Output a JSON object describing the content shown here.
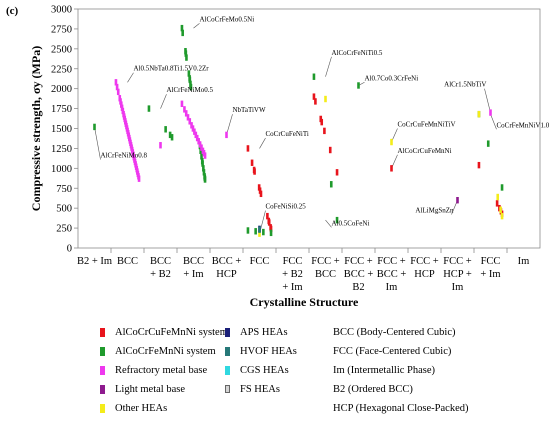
{
  "figure_label": "(c)",
  "chart_data": {
    "type": "scatter",
    "ylabel": "Compressive strength, σy (MPa)",
    "xlabel": "Crystalline Structure",
    "ylim": [
      0,
      3000
    ],
    "yticks": [
      0,
      250,
      500,
      750,
      1000,
      1250,
      1500,
      1750,
      2000,
      2250,
      2500,
      2750,
      3000
    ],
    "categories": [
      {
        "id": "b2im",
        "lines": [
          "B2 + Im"
        ]
      },
      {
        "id": "bcc",
        "lines": [
          "BCC"
        ]
      },
      {
        "id": "bccb2",
        "lines": [
          "BCC",
          "+ B2"
        ]
      },
      {
        "id": "bccim",
        "lines": [
          "BCC",
          "+ Im"
        ]
      },
      {
        "id": "bcchcp",
        "lines": [
          "BCC +",
          "HCP"
        ]
      },
      {
        "id": "fcc",
        "lines": [
          "FCC"
        ]
      },
      {
        "id": "fccb2im",
        "lines": [
          "FCC",
          "+ B2",
          "+ Im"
        ]
      },
      {
        "id": "fccbcc",
        "lines": [
          "FCC +",
          "BCC"
        ]
      },
      {
        "id": "fccbccb2",
        "lines": [
          "FCC +",
          "BCC +",
          "B2"
        ]
      },
      {
        "id": "fccbccim",
        "lines": [
          "FCC +",
          "BCC +",
          "Im"
        ]
      },
      {
        "id": "fcchcp",
        "lines": [
          "FCC +",
          "HCP"
        ]
      },
      {
        "id": "fcchcpim",
        "lines": [
          "FCC +",
          "HCP +",
          "Im"
        ]
      },
      {
        "id": "fccim",
        "lines": [
          "FCC",
          "+ Im"
        ]
      },
      {
        "id": "im",
        "lines": [
          "Im"
        ]
      }
    ],
    "colors": {
      "AlCoCrCuFeMnNi": "#e8141c",
      "AlCoCrFeMnNi": "#1f9a2c",
      "Refractory": "#ee38ee",
      "Light": "#8e1a8e",
      "Other": "#f4ec1a",
      "APS": "#1a1f78",
      "HVOF": "#267878",
      "CGS": "#30d8e0",
      "FS": "#d4d4d4"
    },
    "series": [
      {
        "key": "AlCoCrCuFeMnNi",
        "points": [
          [
            "fcc",
            1250
          ],
          [
            "fcc",
            1070
          ],
          [
            "fcc",
            980
          ],
          [
            "fcc",
            960
          ],
          [
            "fcc",
            760
          ],
          [
            "fcc",
            720
          ],
          [
            "fcc",
            680
          ],
          [
            "fcc",
            400
          ],
          [
            "fcc",
            340
          ],
          [
            "fcc",
            320
          ],
          [
            "fcc",
            260
          ],
          [
            "fcc",
            240
          ],
          [
            "fccbcc",
            1900
          ],
          [
            "fccbcc",
            1840
          ],
          [
            "fccbcc",
            1620
          ],
          [
            "fccbcc",
            1580
          ],
          [
            "fccbcc",
            1470
          ],
          [
            "fccbcc",
            1230
          ],
          [
            "fccbcc",
            950
          ],
          [
            "fccbccim",
            1000
          ],
          [
            "fccim",
            1040
          ],
          [
            "fccim",
            560
          ],
          [
            "fccim",
            500
          ],
          [
            "fccim",
            460
          ],
          [
            "fccim",
            430
          ]
        ]
      },
      {
        "key": "AlCoCrFeMnNi",
        "points": [
          [
            "b2im",
            1520
          ],
          [
            "bccb2",
            1750
          ],
          [
            "bccb2",
            1490
          ],
          [
            "bccb2",
            1420
          ],
          [
            "bccb2",
            1390
          ],
          [
            "bccim",
            2760
          ],
          [
            "bccim",
            2700
          ],
          [
            "bccim",
            2470
          ],
          [
            "bccim",
            2440
          ],
          [
            "bccim",
            2390
          ],
          [
            "bccim",
            2190
          ],
          [
            "bccim",
            2130
          ],
          [
            "bccim",
            2110
          ],
          [
            "bccim",
            2060
          ],
          [
            "bccim",
            2020
          ],
          [
            "bccim",
            1280
          ],
          [
            "bccim",
            1220
          ],
          [
            "bccim",
            1150
          ],
          [
            "bccim",
            1090
          ],
          [
            "bccim",
            1060
          ],
          [
            "bccim",
            1000
          ],
          [
            "bccim",
            950
          ],
          [
            "bccim",
            900
          ],
          [
            "bccim",
            880
          ],
          [
            "bccim",
            860
          ],
          [
            "fcc",
            220
          ],
          [
            "fcc",
            210
          ],
          [
            "fcc",
            200
          ],
          [
            "fcc",
            190
          ],
          [
            "fccbcc",
            2150
          ],
          [
            "fccbcc",
            800
          ],
          [
            "fccbcc",
            350
          ],
          [
            "fccbccb2",
            2040
          ],
          [
            "fccim",
            1680
          ],
          [
            "fccim",
            1310
          ],
          [
            "fccim",
            760
          ]
        ]
      },
      {
        "key": "Refractory",
        "points": [
          [
            "bcc",
            2080
          ],
          [
            "bcc",
            2020
          ],
          [
            "bcc",
            1960
          ],
          [
            "bcc",
            1880
          ],
          [
            "bcc",
            1840
          ],
          [
            "bcc",
            1800
          ],
          [
            "bcc",
            1760
          ],
          [
            "bcc",
            1720
          ],
          [
            "bcc",
            1680
          ],
          [
            "bcc",
            1650
          ],
          [
            "bcc",
            1620
          ],
          [
            "bcc",
            1590
          ],
          [
            "bcc",
            1560
          ],
          [
            "bcc",
            1530
          ],
          [
            "bcc",
            1500
          ],
          [
            "bcc",
            1470
          ],
          [
            "bcc",
            1440
          ],
          [
            "bcc",
            1410
          ],
          [
            "bcc",
            1380
          ],
          [
            "bcc",
            1350
          ],
          [
            "bcc",
            1320
          ],
          [
            "bcc",
            1290
          ],
          [
            "bcc",
            1260
          ],
          [
            "bcc",
            1230
          ],
          [
            "bcc",
            1200
          ],
          [
            "bcc",
            1170
          ],
          [
            "bcc",
            1140
          ],
          [
            "bcc",
            1110
          ],
          [
            "bcc",
            1080
          ],
          [
            "bcc",
            1050
          ],
          [
            "bcc",
            1020
          ],
          [
            "bcc",
            990
          ],
          [
            "bcc",
            960
          ],
          [
            "bcc",
            930
          ],
          [
            "bcc",
            900
          ],
          [
            "bcc",
            870
          ],
          [
            "bccb2",
            1290
          ],
          [
            "bccim",
            1810
          ],
          [
            "bccim",
            1740
          ],
          [
            "bccim",
            1690
          ],
          [
            "bccim",
            1640
          ],
          [
            "bccim",
            1590
          ],
          [
            "bccim",
            1540
          ],
          [
            "bccim",
            1500
          ],
          [
            "bccim",
            1460
          ],
          [
            "bccim",
            1420
          ],
          [
            "bccim",
            1380
          ],
          [
            "bccim",
            1340
          ],
          [
            "bccim",
            1300
          ],
          [
            "bccim",
            1260
          ],
          [
            "bccim",
            1220
          ],
          [
            "bccim",
            1190
          ],
          [
            "bccim",
            1160
          ],
          [
            "bcchcp",
            1420
          ],
          [
            "fccim",
            1700
          ]
        ]
      },
      {
        "key": "Light",
        "points": [
          [
            "fcchcpim",
            600
          ]
        ]
      },
      {
        "key": "Other",
        "points": [
          [
            "fccbcc",
            1870
          ],
          [
            "fccbccim",
            1330
          ],
          [
            "fccim",
            1680
          ],
          [
            "fccim",
            640
          ],
          [
            "fccim",
            480
          ],
          [
            "fccim",
            400
          ],
          [
            "fcc",
            180
          ]
        ]
      },
      {
        "key": "APS",
        "points": [
          [
            "fcc",
            240
          ]
        ]
      },
      {
        "key": "HVOF",
        "points": [
          [
            "fcc",
            230
          ]
        ]
      },
      {
        "key": "CGS",
        "points": []
      },
      {
        "key": "FS",
        "points": []
      }
    ],
    "annotations": [
      {
        "text": "AlCrFeNiMo0.8",
        "cat": "b2im",
        "y": 1520,
        "label_y": 1110,
        "side": "right",
        "label_x_cat": "b2im"
      },
      {
        "text": "Al0.5NbTa0.8Ti1.5V0.2Zr",
        "cat": "bcc",
        "y": 2080,
        "label_y": 2200,
        "side": "right"
      },
      {
        "text": "AlCrFeNiMo0.5",
        "cat": "bccb2",
        "y": 1750,
        "label_y": 1930,
        "side": "right"
      },
      {
        "text": "AlCoCrFeMo0.5Ni",
        "cat": "bccim",
        "y": 2760,
        "label_y": 2820,
        "side": "right"
      },
      {
        "text": "NbTaTiVW",
        "cat": "bcchcp",
        "y": 1420,
        "label_y": 1680,
        "side": "right"
      },
      {
        "text": "CoCrCuFeNiTi",
        "cat": "fcc",
        "y": 1250,
        "label_y": 1380,
        "side": "right"
      },
      {
        "text": "CoFeNiSi0.25",
        "cat": "fcc",
        "y": 180,
        "label_y": 470,
        "side": "right"
      },
      {
        "text": "AlCoCrFeNiTi0.5",
        "cat": "fccbcc",
        "y": 2150,
        "label_y": 2400,
        "side": "right"
      },
      {
        "text": "Al0.7Co0.3CrFeNi",
        "cat": "fccbccb2",
        "y": 2040,
        "label_y": 2080,
        "side": "right"
      },
      {
        "text": "Al0.5CoFeNi",
        "cat": "fccbcc",
        "y": 350,
        "label_y": 260,
        "side": "right"
      },
      {
        "text": "CoCrCuFeMnNiTiV",
        "cat": "fccbccim",
        "y": 1330,
        "label_y": 1500,
        "side": "right"
      },
      {
        "text": "AlCoCrCuFeMnNi",
        "cat": "fccbccim",
        "y": 1000,
        "label_y": 1170,
        "side": "right"
      },
      {
        "text": "AlLiMgSnZn",
        "cat": "fcchcpim",
        "y": 600,
        "label_y": 420,
        "side": "left"
      },
      {
        "text": "AlCr1.5NbTiV",
        "cat": "fccim",
        "y": 1700,
        "label_y": 2000,
        "side": "left"
      },
      {
        "text": "CoCrFeMnNiV1.0",
        "cat": "fccim",
        "y": 1680,
        "label_y": 1490,
        "side": "right"
      }
    ]
  },
  "legend": {
    "col1": [
      {
        "key": "AlCoCrCuFeMnNi",
        "label": "AlCoCrCuFeMnNi system"
      },
      {
        "key": "AlCoCrFeMnNi",
        "label": "AlCoCrFeMnNi system"
      },
      {
        "key": "Refractory",
        "label": "Refractory metal base"
      },
      {
        "key": "Light",
        "label": "Light metal base"
      },
      {
        "key": "Other",
        "label": "Other HEAs"
      }
    ],
    "col2": [
      {
        "key": "APS",
        "label": "APS HEAs"
      },
      {
        "key": "HVOF",
        "label": "HVOF HEAs"
      },
      {
        "key": "CGS",
        "label": "CGS HEAs"
      },
      {
        "key": "FS",
        "label": "FS HEAs"
      }
    ],
    "col3": [
      "BCC (Body-Centered Cubic)",
      "FCC (Face-Centered Cubic)",
      "Im (Intermetallic Phase)",
      "B2 (Ordered BCC)",
      "HCP (Hexagonal Close-Packed)"
    ]
  }
}
